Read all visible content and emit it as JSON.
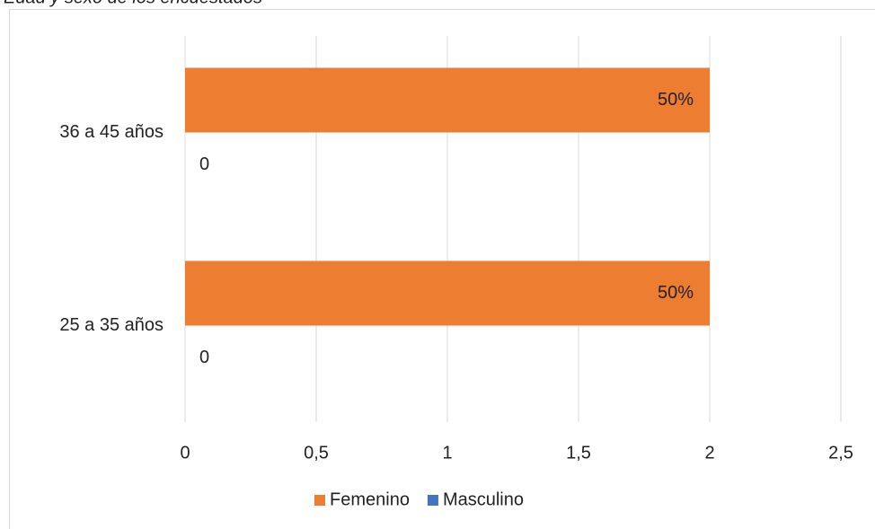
{
  "chart_data": {
    "type": "hbar",
    "title": "Edad y sexo de los encuestados",
    "categories": [
      "25 a 35 años",
      "36 a 45 años"
    ],
    "series": [
      {
        "name": "Femenino",
        "color": "#ed7d31",
        "values": [
          2,
          2
        ],
        "value_labels": [
          "50%",
          "50%"
        ]
      },
      {
        "name": "Masculino",
        "color": "#4472c4",
        "values": [
          0,
          0
        ],
        "value_labels": [
          "0",
          "0"
        ]
      }
    ],
    "xlim": [
      0,
      2.5
    ],
    "xticks": [
      0,
      {
        "value": 0.5,
        "label": "0,5"
      },
      1,
      {
        "value": 1.5,
        "label": "1,5"
      },
      2,
      {
        "value": 2.5,
        "label": "2,5"
      }
    ],
    "grid": true,
    "legend": "bottom"
  }
}
